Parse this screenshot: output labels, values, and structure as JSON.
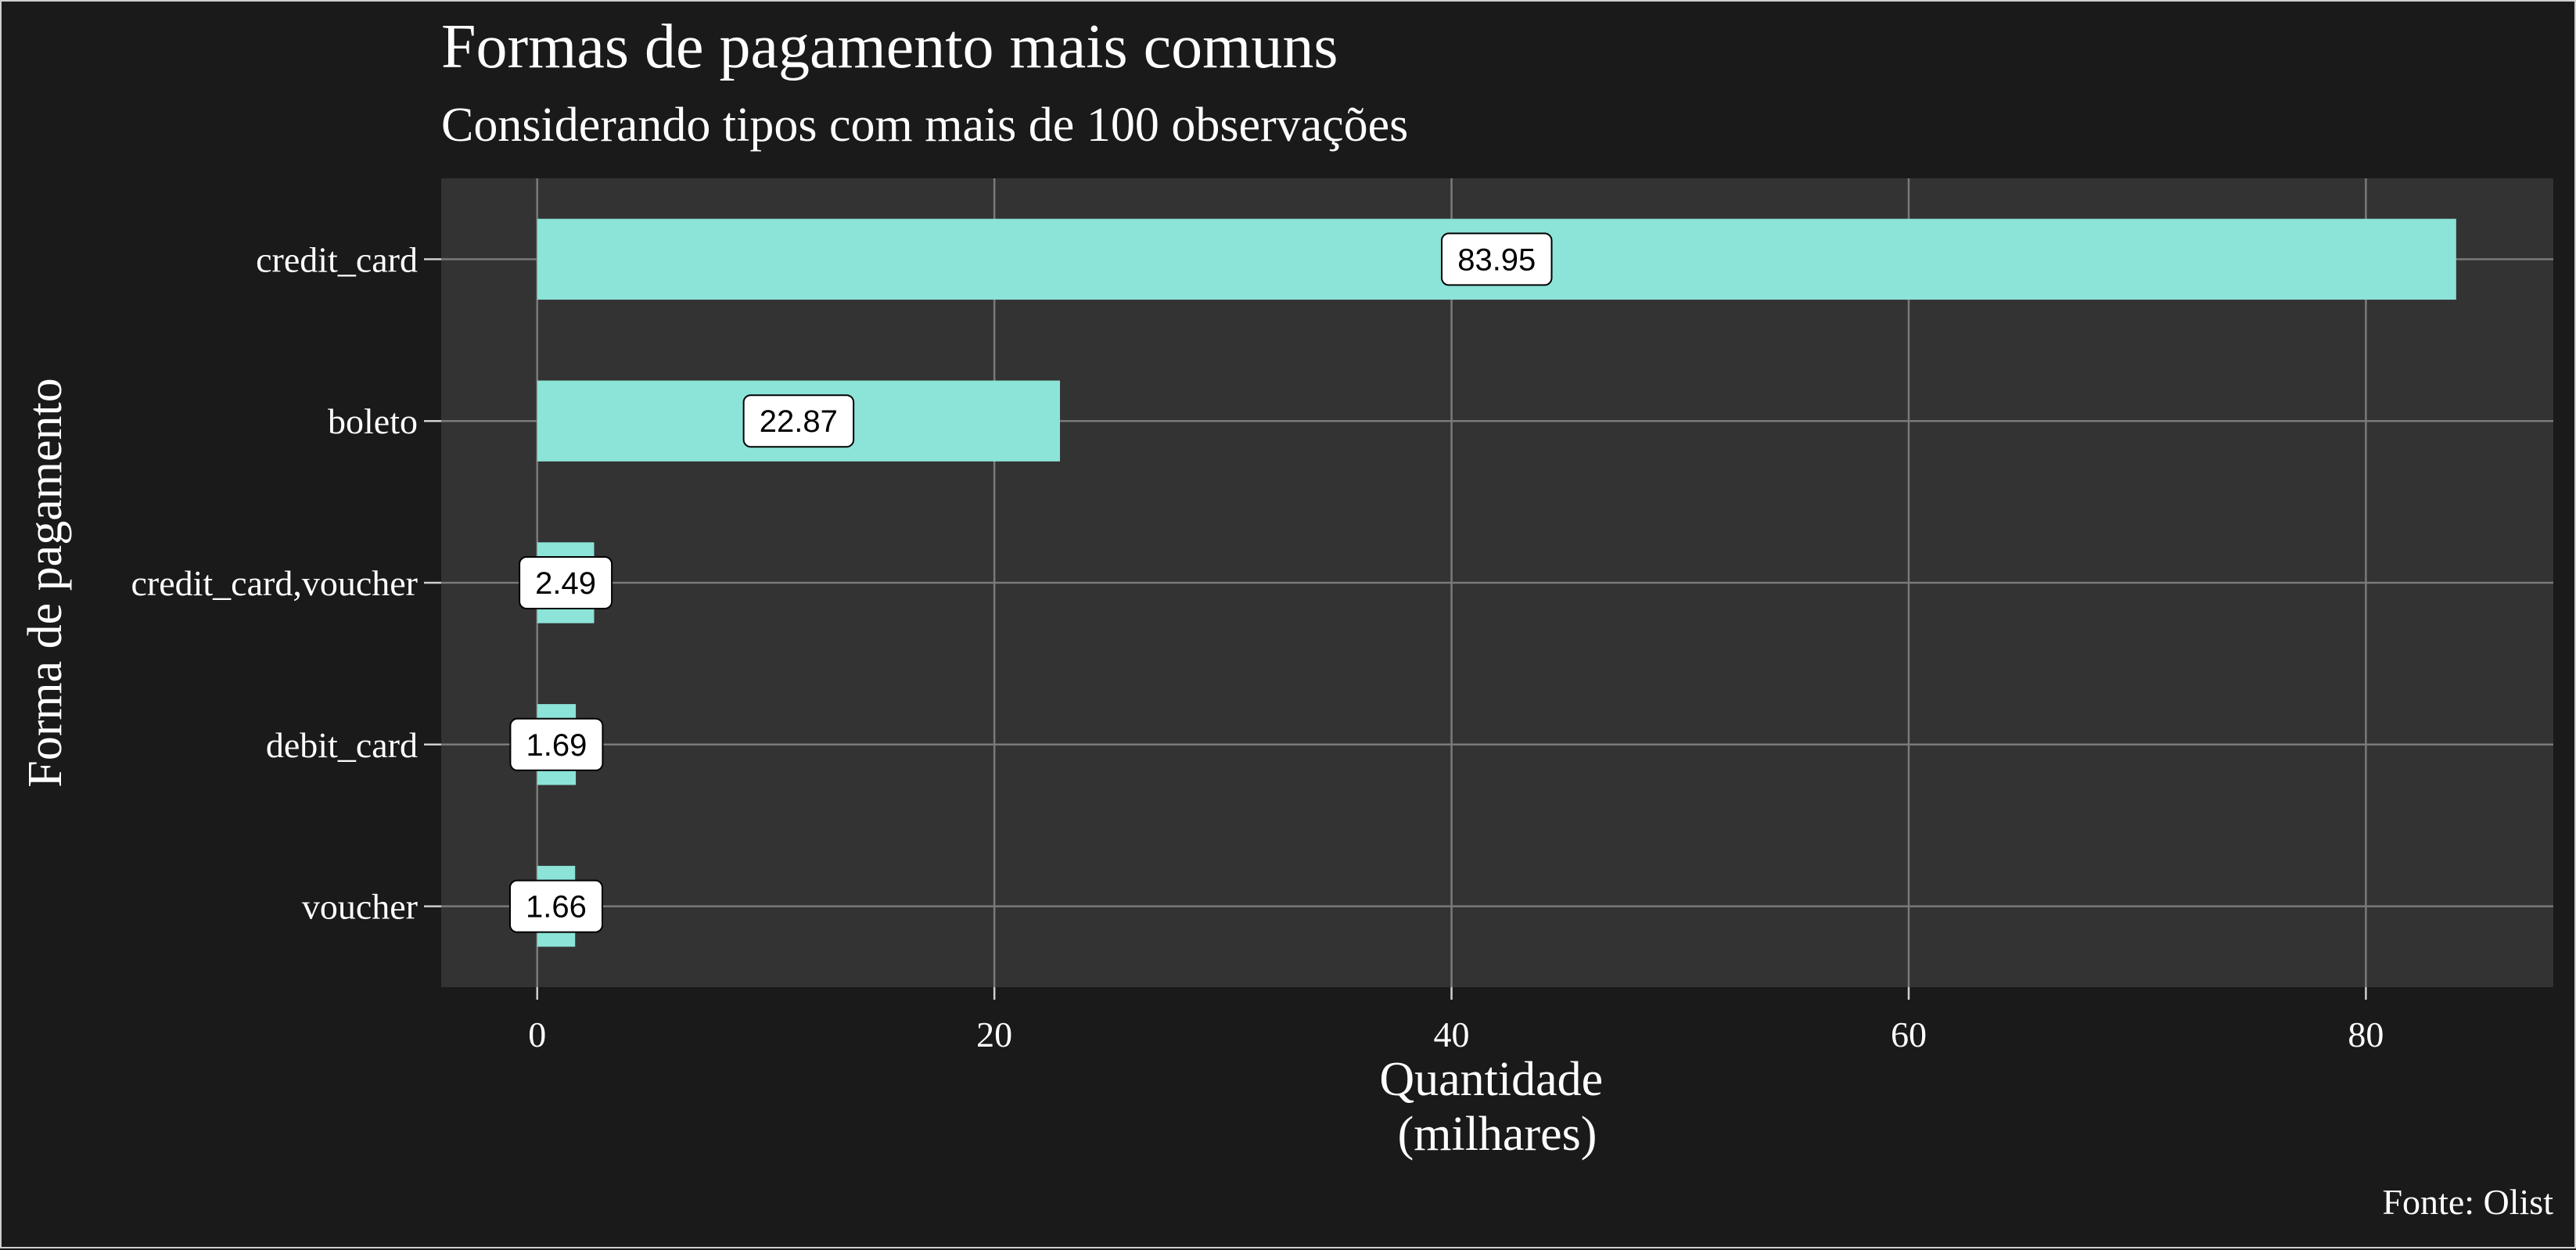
{
  "chart_data": {
    "type": "bar",
    "orientation": "horizontal",
    "title": "Formas de pagamento mais comuns",
    "subtitle": "Considerando tipos com mais de 100 observações",
    "xlabel": "Quantidade\n(milhares)",
    "ylabel": "Forma de pagamento",
    "caption": "Fonte: Olist",
    "categories": [
      "credit_card",
      "boleto",
      "credit_card,voucher",
      "debit_card",
      "voucher"
    ],
    "values": [
      83.95,
      22.87,
      2.49,
      1.69,
      1.66
    ],
    "data_labels": [
      "83.95",
      "22.87",
      "2.49",
      "1.69",
      "1.66"
    ],
    "x_ticks": [
      0,
      20,
      40,
      60,
      80
    ],
    "x_tick_labels": [
      "0",
      "20",
      "40",
      "60",
      "80"
    ],
    "xlim": [
      -4.2,
      88.2
    ],
    "grid": true,
    "colors": {
      "bar": "#8ce3d8",
      "panel": "#333333",
      "background": "#1a1a1a",
      "grid": "#7a7a7a",
      "text": "#ffffff"
    }
  }
}
